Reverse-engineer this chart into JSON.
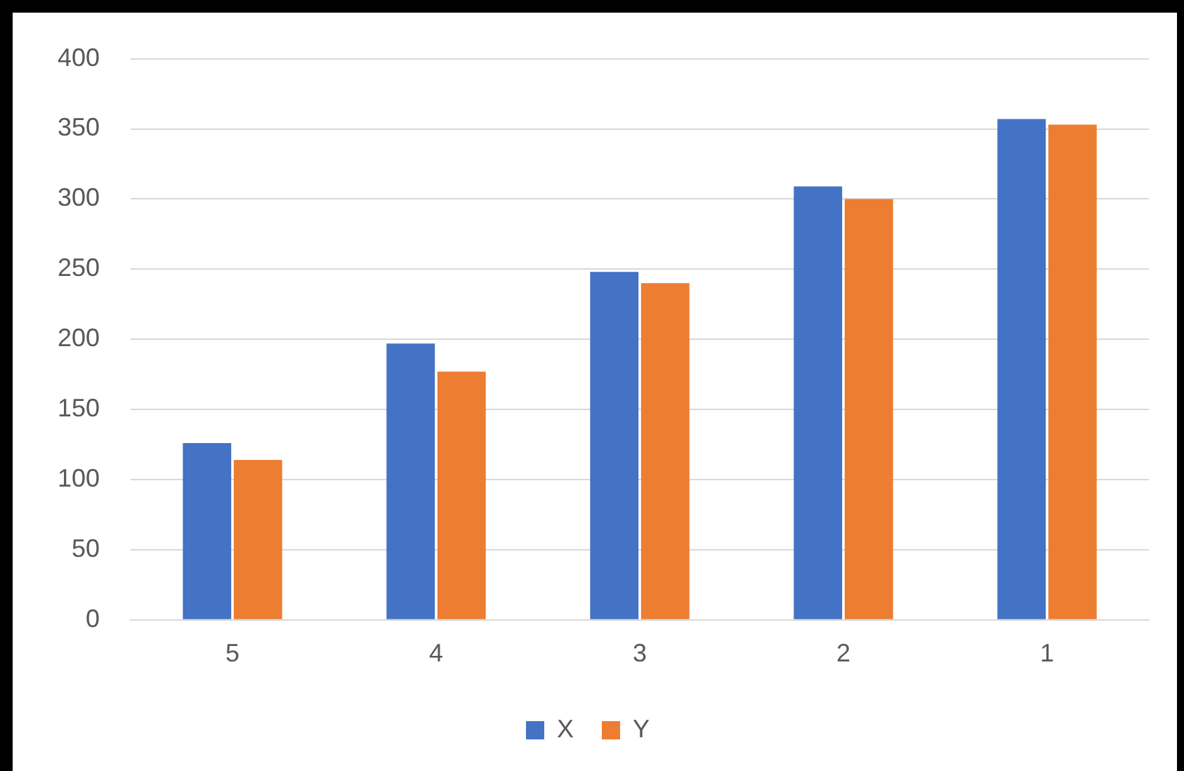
{
  "chart_data": {
    "type": "bar",
    "categories": [
      "5",
      "4",
      "3",
      "2",
      "1"
    ],
    "series": [
      {
        "name": "X",
        "color": "#4472c4",
        "values": [
          126,
          197,
          248,
          309,
          357
        ]
      },
      {
        "name": "Y",
        "color": "#ed7d31",
        "values": [
          114,
          177,
          240,
          300,
          353
        ]
      }
    ],
    "ylim": [
      0,
      400
    ],
    "yticks": [
      0,
      50,
      100,
      150,
      200,
      250,
      300,
      350,
      400
    ],
    "grid": "y",
    "legend": "bottom"
  }
}
